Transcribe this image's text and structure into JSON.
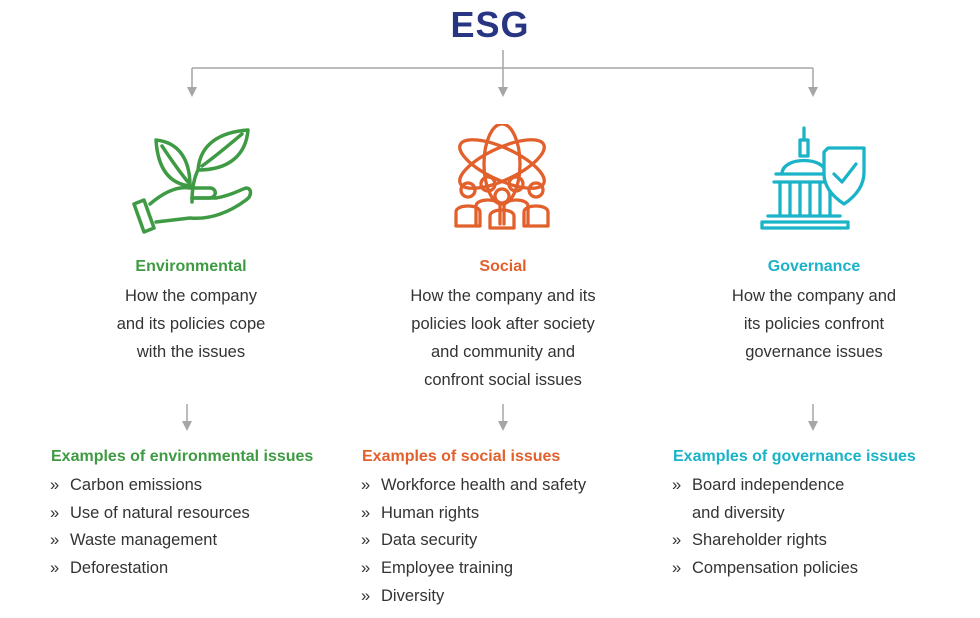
{
  "title": "ESG",
  "colors": {
    "title": "#283583",
    "connector": "#a6a6a6",
    "environmental": "#3f9b43",
    "social": "#e2602c",
    "governance": "#1ab3c8"
  },
  "pillars": [
    {
      "key": "environmental",
      "icon": "hand-with-leaves-icon",
      "title": "Environmental",
      "description": [
        "How the company",
        "and its policies cope",
        "with the issues"
      ],
      "examples_title": "Examples of environmental issues",
      "examples": [
        [
          "Carbon emissions"
        ],
        [
          "Use of natural resources"
        ],
        [
          "Waste management"
        ],
        [
          "Deforestation"
        ]
      ]
    },
    {
      "key": "social",
      "icon": "people-atom-icon",
      "title": "Social",
      "description": [
        "How the company and its",
        "policies look after society",
        "and community and",
        "confront social issues"
      ],
      "examples_title": "Examples of social issues",
      "examples": [
        [
          "Workforce health and safety"
        ],
        [
          "Human rights"
        ],
        [
          "Data security"
        ],
        [
          "Employee training"
        ],
        [
          "Diversity"
        ]
      ]
    },
    {
      "key": "governance",
      "icon": "capitol-shield-icon",
      "title": "Governance",
      "description": [
        "How the company and",
        "its policies confront",
        "governance issues"
      ],
      "examples_title": "Examples of governance issues",
      "examples": [
        [
          "Board independence",
          "and diversity"
        ],
        [
          "Shareholder rights"
        ],
        [
          "Compensation policies"
        ]
      ]
    }
  ],
  "bullet": "»"
}
